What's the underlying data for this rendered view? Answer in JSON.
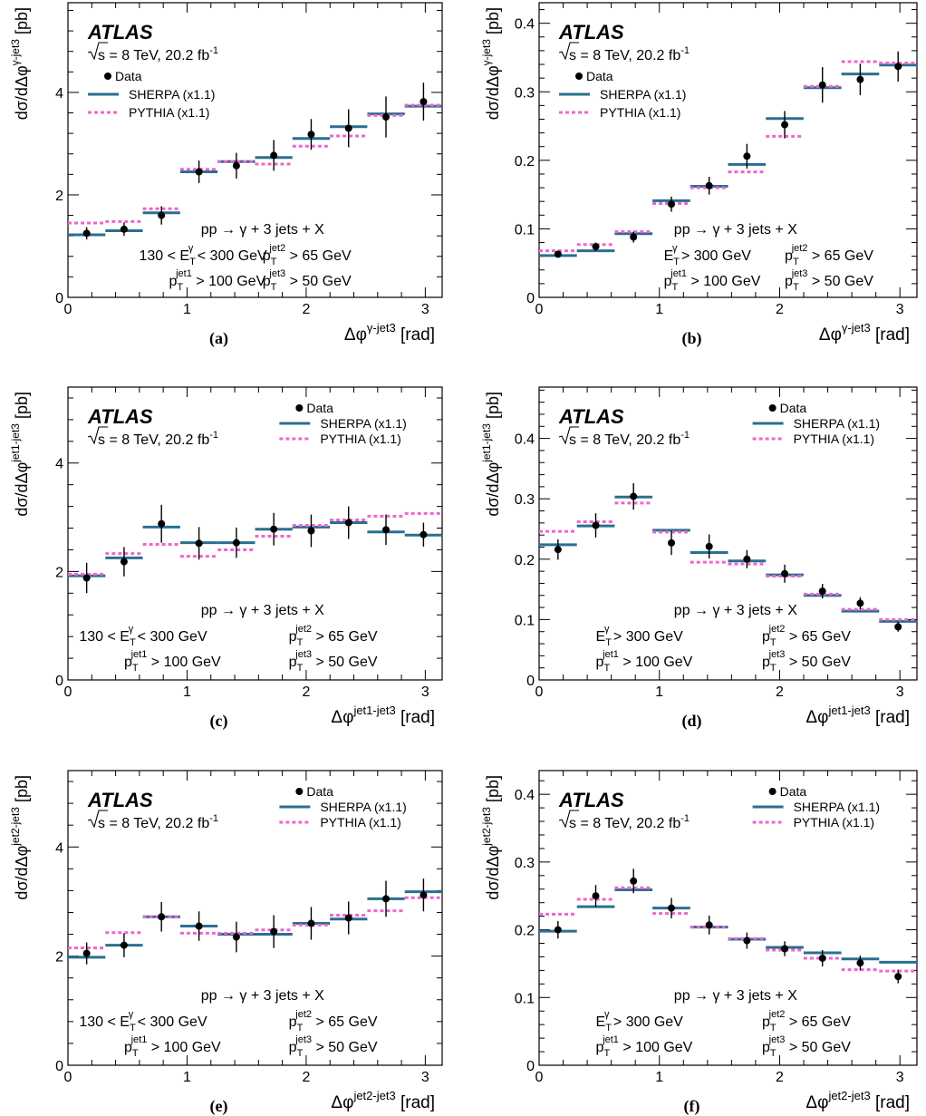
{
  "figure": {
    "panels": [
      {
        "id": "a",
        "caption": "(a)",
        "atlas": "ATLAS",
        "energy_line": [
          "s",
          " = 8 TeV, 20.2 fb",
          "-1"
        ],
        "legend": {
          "data": "Data",
          "sherpa": "SHERPA (x1.1)",
          "pythia": "PYTHIA (x1.1)",
          "position": "top-left"
        },
        "process": "pp → γ + 3 jets + X",
        "cuts": [
          {
            "pre": "130 < E",
            "sub": "T",
            "sup": "γ",
            "post": " < 300 GeV"
          },
          {
            "pre": "p",
            "sub": "T",
            "sup": "jet2",
            "post": " > 65 GeV"
          },
          {
            "pre": "p",
            "sub": "T",
            "sup": "jet1",
            "post": " > 100 GeV"
          },
          {
            "pre": "p",
            "sub": "T",
            "sup": "jet3",
            "post": " > 50 GeV"
          }
        ],
        "xlabel": {
          "pre": "Δφ",
          "sup": "γ-jet3",
          "post": " [rad]"
        },
        "ylabel": {
          "pre": "dσ/dΔφ",
          "sup": "γ-jet3",
          "post": " [pb]"
        }
      },
      {
        "id": "b",
        "caption": "(b)",
        "atlas": "ATLAS",
        "energy_line": [
          "s",
          " = 8 TeV, 20.2 fb",
          "-1"
        ],
        "legend": {
          "data": "Data",
          "sherpa": "SHERPA (x1.1)",
          "pythia": "PYTHIA (x1.1)",
          "position": "top-left"
        },
        "process": "pp → γ + 3 jets + X",
        "cuts": [
          {
            "pre": "E",
            "sub": "T",
            "sup": "γ",
            "post": " > 300 GeV"
          },
          {
            "pre": "p",
            "sub": "T",
            "sup": "jet2",
            "post": " > 65 GeV"
          },
          {
            "pre": "p",
            "sub": "T",
            "sup": "jet1",
            "post": " > 100 GeV"
          },
          {
            "pre": "p",
            "sub": "T",
            "sup": "jet3",
            "post": " > 50 GeV"
          }
        ],
        "xlabel": {
          "pre": "Δφ",
          "sup": "γ-jet3",
          "post": " [rad]"
        },
        "ylabel": {
          "pre": "dσ/dΔφ",
          "sup": "γ-jet3",
          "post": " [pb]"
        }
      },
      {
        "id": "c",
        "caption": "(c)",
        "atlas": "ATLAS",
        "energy_line": [
          "s",
          " = 8 TeV, 20.2 fb",
          "-1"
        ],
        "legend": {
          "data": "Data",
          "sherpa": "SHERPA (x1.1)",
          "pythia": "PYTHIA (x1.1)",
          "position": "top-right"
        },
        "process": "pp → γ + 3 jets + X",
        "cuts": [
          {
            "pre": "130 < E",
            "sub": "T",
            "sup": "γ",
            "post": " < 300 GeV"
          },
          {
            "pre": "p",
            "sub": "T",
            "sup": "jet2",
            "post": " > 65 GeV"
          },
          {
            "pre": "p",
            "sub": "T",
            "sup": "jet1",
            "post": " > 100 GeV"
          },
          {
            "pre": "p",
            "sub": "T",
            "sup": "jet3",
            "post": " > 50 GeV"
          }
        ],
        "xlabel": {
          "pre": "Δφ",
          "sup": "jet1-jet3",
          "post": " [rad]"
        },
        "ylabel": {
          "pre": "dσ/dΔφ",
          "sup": "jet1-jet3",
          "post": " [pb]"
        }
      },
      {
        "id": "d",
        "caption": "(d)",
        "atlas": "ATLAS",
        "energy_line": [
          "s",
          " = 8 TeV, 20.2 fb",
          "-1"
        ],
        "legend": {
          "data": "Data",
          "sherpa": "SHERPA (x1.1)",
          "pythia": "PYTHIA (x1.1)",
          "position": "top-right"
        },
        "process": "pp → γ + 3 jets + X",
        "cuts": [
          {
            "pre": "E",
            "sub": "T",
            "sup": "γ",
            "post": " > 300 GeV"
          },
          {
            "pre": "p",
            "sub": "T",
            "sup": "jet2",
            "post": " > 65 GeV"
          },
          {
            "pre": "p",
            "sub": "T",
            "sup": "jet1",
            "post": " > 100 GeV"
          },
          {
            "pre": "p",
            "sub": "T",
            "sup": "jet3",
            "post": " > 50 GeV"
          }
        ],
        "xlabel": {
          "pre": "Δφ",
          "sup": "jet1-jet3",
          "post": " [rad]"
        },
        "ylabel": {
          "pre": "dσ/dΔφ",
          "sup": "jet1-jet3",
          "post": " [pb]"
        }
      },
      {
        "id": "e",
        "caption": "(e)",
        "atlas": "ATLAS",
        "energy_line": [
          "s",
          " = 8 TeV, 20.2 fb",
          "-1"
        ],
        "legend": {
          "data": "Data",
          "sherpa": "SHERPA (x1.1)",
          "pythia": "PYTHIA (x1.1)",
          "position": "top-right"
        },
        "process": "pp → γ + 3 jets + X",
        "cuts": [
          {
            "pre": "130 < E",
            "sub": "T",
            "sup": "γ",
            "post": " < 300 GeV"
          },
          {
            "pre": "p",
            "sub": "T",
            "sup": "jet2",
            "post": " > 65 GeV"
          },
          {
            "pre": "p",
            "sub": "T",
            "sup": "jet1",
            "post": " > 100 GeV"
          },
          {
            "pre": "p",
            "sub": "T",
            "sup": "jet3",
            "post": " > 50 GeV"
          }
        ],
        "xlabel": {
          "pre": "Δφ",
          "sup": "jet2-jet3",
          "post": " [rad]"
        },
        "ylabel": {
          "pre": "dσ/dΔφ",
          "sup": "jet2-jet3",
          "post": " [pb]"
        }
      },
      {
        "id": "f",
        "caption": "(f)",
        "atlas": "ATLAS",
        "energy_line": [
          "s",
          " = 8 TeV, 20.2 fb",
          "-1"
        ],
        "legend": {
          "data": "Data",
          "sherpa": "SHERPA (x1.1)",
          "pythia": "PYTHIA (x1.1)",
          "position": "top-right"
        },
        "process": "pp → γ + 3 jets + X",
        "cuts": [
          {
            "pre": "E",
            "sub": "T",
            "sup": "γ",
            "post": " > 300 GeV"
          },
          {
            "pre": "p",
            "sub": "T",
            "sup": "jet2",
            "post": " > 65 GeV"
          },
          {
            "pre": "p",
            "sub": "T",
            "sup": "jet1",
            "post": " > 100 GeV"
          },
          {
            "pre": "p",
            "sub": "T",
            "sup": "jet3",
            "post": " > 50 GeV"
          }
        ],
        "xlabel": {
          "pre": "Δφ",
          "sup": "jet2-jet3",
          "post": " [rad]"
        },
        "ylabel": {
          "pre": "dσ/dΔφ",
          "sup": "jet2-jet3",
          "post": " [pb]"
        }
      }
    ]
  },
  "colors": {
    "sherpa": "#2a6f8f",
    "pythia": "#ee66cc",
    "data": "#000000",
    "axis": "#000000"
  },
  "chart_data": [
    {
      "type": "step-line",
      "panel": "a",
      "xlim": [
        0,
        3.1416
      ],
      "ylim": [
        0,
        5.75
      ],
      "xticks": [
        0,
        1,
        2,
        3
      ],
      "yticks": [
        0,
        2,
        4
      ],
      "bin_edges": [
        0,
        0.3142,
        0.6283,
        0.9425,
        1.2566,
        1.5708,
        1.885,
        2.1991,
        2.5133,
        2.8274,
        3.1416
      ],
      "series": [
        {
          "name": "Data",
          "x": [
            0.157,
            0.471,
            0.785,
            1.1,
            1.414,
            1.728,
            2.042,
            2.356,
            2.67,
            2.985
          ],
          "values": [
            1.25,
            1.33,
            1.6,
            2.45,
            2.57,
            2.77,
            3.18,
            3.3,
            3.52,
            3.82
          ],
          "errors": [
            0.12,
            0.13,
            0.18,
            0.22,
            0.25,
            0.3,
            0.3,
            0.37,
            0.4,
            0.37
          ]
        },
        {
          "name": "SHERPA (x1.1)",
          "values": [
            1.22,
            1.3,
            1.65,
            2.45,
            2.65,
            2.73,
            3.1,
            3.33,
            3.58,
            3.73
          ]
        },
        {
          "name": "PYTHIA (x1.1)",
          "values": [
            1.45,
            1.48,
            1.73,
            2.5,
            2.65,
            2.6,
            2.95,
            3.15,
            3.55,
            3.75
          ]
        }
      ]
    },
    {
      "type": "step-line",
      "panel": "b",
      "xlim": [
        0,
        3.1416
      ],
      "ylim": [
        0,
        0.43
      ],
      "xticks": [
        0,
        1,
        2,
        3
      ],
      "yticks": [
        0,
        0.1,
        0.2,
        0.3,
        0.4
      ],
      "bin_edges": [
        0,
        0.3142,
        0.6283,
        0.9425,
        1.2566,
        1.5708,
        1.885,
        2.1991,
        2.5133,
        2.8274,
        3.1416
      ],
      "series": [
        {
          "name": "Data",
          "x": [
            0.157,
            0.471,
            0.785,
            1.1,
            1.414,
            1.728,
            2.042,
            2.356,
            2.67,
            2.985
          ],
          "values": [
            0.063,
            0.074,
            0.088,
            0.136,
            0.163,
            0.206,
            0.252,
            0.31,
            0.318,
            0.337
          ],
          "errors": [
            0.005,
            0.006,
            0.008,
            0.011,
            0.013,
            0.018,
            0.02,
            0.026,
            0.023,
            0.022
          ]
        },
        {
          "name": "SHERPA (x1.1)",
          "values": [
            0.061,
            0.068,
            0.093,
            0.141,
            0.162,
            0.194,
            0.261,
            0.306,
            0.326,
            0.339
          ]
        },
        {
          "name": "PYTHIA (x1.1)",
          "values": [
            0.068,
            0.077,
            0.096,
            0.137,
            0.16,
            0.183,
            0.235,
            0.308,
            0.344,
            0.342
          ]
        }
      ]
    },
    {
      "type": "step-line",
      "panel": "c",
      "xlim": [
        0,
        3.1416
      ],
      "ylim": [
        0,
        5.4
      ],
      "xticks": [
        0,
        1,
        2,
        3
      ],
      "yticks": [
        0,
        2,
        4
      ],
      "bin_edges": [
        0,
        0.3142,
        0.6283,
        0.9425,
        1.2566,
        1.5708,
        1.885,
        2.1991,
        2.5133,
        2.8274,
        3.1416
      ],
      "series": [
        {
          "name": "Data",
          "x": [
            0.157,
            0.471,
            0.785,
            1.1,
            1.414,
            1.728,
            2.042,
            2.356,
            2.67,
            2.985
          ],
          "values": [
            1.88,
            2.18,
            2.88,
            2.52,
            2.53,
            2.78,
            2.75,
            2.9,
            2.77,
            2.68
          ],
          "errors": [
            0.28,
            0.27,
            0.35,
            0.3,
            0.28,
            0.3,
            0.3,
            0.3,
            0.28,
            0.22
          ]
        },
        {
          "name": "SHERPA (x1.1)",
          "values": [
            1.92,
            2.25,
            2.82,
            2.53,
            2.53,
            2.78,
            2.82,
            2.9,
            2.73,
            2.67
          ]
        },
        {
          "name": "PYTHIA (x1.1)",
          "values": [
            1.95,
            2.33,
            2.5,
            2.28,
            2.4,
            2.65,
            2.85,
            2.95,
            3.02,
            3.07
          ]
        }
      ]
    },
    {
      "type": "step-line",
      "panel": "d",
      "xlim": [
        0,
        3.1416
      ],
      "ylim": [
        0,
        0.485
      ],
      "xticks": [
        0,
        1,
        2,
        3
      ],
      "yticks": [
        0,
        0.1,
        0.2,
        0.3,
        0.4
      ],
      "bin_edges": [
        0,
        0.3142,
        0.6283,
        0.9425,
        1.2566,
        1.5708,
        1.885,
        2.1991,
        2.5133,
        2.8274,
        3.1416
      ],
      "series": [
        {
          "name": "Data",
          "x": [
            0.157,
            0.471,
            0.785,
            1.1,
            1.414,
            1.728,
            2.042,
            2.356,
            2.67,
            2.985
          ],
          "values": [
            0.216,
            0.256,
            0.304,
            0.227,
            0.221,
            0.2,
            0.176,
            0.147,
            0.127,
            0.088
          ],
          "errors": [
            0.017,
            0.02,
            0.022,
            0.02,
            0.02,
            0.015,
            0.015,
            0.012,
            0.01,
            0.008
          ]
        },
        {
          "name": "SHERPA (x1.1)",
          "values": [
            0.224,
            0.255,
            0.303,
            0.248,
            0.211,
            0.197,
            0.174,
            0.14,
            0.114,
            0.097
          ]
        },
        {
          "name": "PYTHIA (x1.1)",
          "values": [
            0.246,
            0.262,
            0.293,
            0.245,
            0.195,
            0.192,
            0.172,
            0.142,
            0.117,
            0.1
          ]
        }
      ]
    },
    {
      "type": "step-line",
      "panel": "e",
      "xlim": [
        0,
        3.1416
      ],
      "ylim": [
        0,
        5.4
      ],
      "xticks": [
        0,
        1,
        2,
        3
      ],
      "yticks": [
        0,
        2,
        4
      ],
      "bin_edges": [
        0,
        0.3142,
        0.6283,
        0.9425,
        1.2566,
        1.5708,
        1.885,
        2.1991,
        2.5133,
        2.8274,
        3.1416
      ],
      "series": [
        {
          "name": "Data",
          "x": [
            0.157,
            0.471,
            0.785,
            1.1,
            1.414,
            1.728,
            2.042,
            2.356,
            2.67,
            2.985
          ],
          "values": [
            2.05,
            2.2,
            2.72,
            2.55,
            2.35,
            2.45,
            2.6,
            2.7,
            3.05,
            3.12
          ],
          "errors": [
            0.2,
            0.22,
            0.27,
            0.27,
            0.28,
            0.3,
            0.3,
            0.3,
            0.33,
            0.3
          ]
        },
        {
          "name": "SHERPA (x1.1)",
          "values": [
            1.98,
            2.2,
            2.72,
            2.55,
            2.4,
            2.4,
            2.6,
            2.68,
            3.05,
            3.18
          ]
        },
        {
          "name": "PYTHIA (x1.1)",
          "values": [
            2.15,
            2.43,
            2.72,
            2.42,
            2.42,
            2.48,
            2.57,
            2.75,
            2.83,
            3.07
          ]
        }
      ]
    },
    {
      "type": "step-line",
      "panel": "f",
      "xlim": [
        0,
        3.1416
      ],
      "ylim": [
        0,
        0.435
      ],
      "xticks": [
        0,
        1,
        2,
        3
      ],
      "yticks": [
        0,
        0.1,
        0.2,
        0.3,
        0.4
      ],
      "bin_edges": [
        0,
        0.3142,
        0.6283,
        0.9425,
        1.2566,
        1.5708,
        1.885,
        2.1991,
        2.5133,
        2.8274,
        3.1416
      ],
      "series": [
        {
          "name": "Data",
          "x": [
            0.157,
            0.471,
            0.785,
            1.1,
            1.414,
            1.728,
            2.042,
            2.356,
            2.67,
            2.985
          ],
          "values": [
            0.2,
            0.25,
            0.272,
            0.232,
            0.207,
            0.184,
            0.172,
            0.158,
            0.151,
            0.131
          ],
          "errors": [
            0.013,
            0.016,
            0.018,
            0.015,
            0.014,
            0.012,
            0.011,
            0.012,
            0.011,
            0.01
          ]
        },
        {
          "name": "SHERPA (x1.1)",
          "values": [
            0.198,
            0.234,
            0.259,
            0.232,
            0.204,
            0.186,
            0.174,
            0.166,
            0.157,
            0.152
          ]
        },
        {
          "name": "PYTHIA (x1.1)",
          "values": [
            0.223,
            0.245,
            0.262,
            0.224,
            0.204,
            0.187,
            0.17,
            0.158,
            0.141,
            0.139
          ]
        }
      ]
    }
  ]
}
